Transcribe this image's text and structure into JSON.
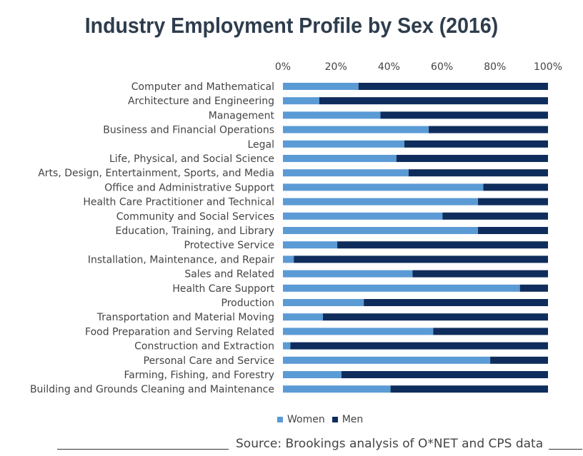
{
  "title": "Industry Employment Profile by Sex (2016)",
  "colors": {
    "women": "#5b9bd5",
    "men": "#0f2d5c"
  },
  "legend": {
    "women": "Women",
    "men": "Men"
  },
  "source": "Source: Brookings analysis of O*NET and CPS data",
  "chart_data": {
    "type": "bar",
    "orientation": "horizontal",
    "stacked": "100%",
    "title": "Industry Employment Profile by Sex (2016)",
    "xlim": [
      0,
      100
    ],
    "x_ticks": [
      "0%",
      "20%",
      "40%",
      "60%",
      "80%",
      "100%"
    ],
    "legend_position": "bottom",
    "grid": false,
    "categories": [
      "Computer and Mathematical",
      "Architecture and Engineering",
      "Management",
      "Business and Financial Operations",
      "Legal",
      "Life, Physical, and Social Science",
      "Arts, Design, Entertainment, Sports, and Media",
      "Office and Administrative Support",
      "Health Care Practitioner and Technical",
      "Community and Social Services",
      "Education, Training, and Library",
      "Protective Service",
      "Installation, Maintenance, and Repair",
      "Sales and Related",
      "Health Care Support",
      "Production",
      "Transportation and Material Moving",
      "Food Preparation and Serving Related",
      "Construction and Extraction",
      "Personal Care and Service",
      "Farming, Fishing, and Forestry",
      "Building and Grounds Cleaning and Maintenance"
    ],
    "series": [
      {
        "name": "Women",
        "values": [
          28.5,
          13.7,
          36.8,
          55.0,
          45.8,
          42.8,
          47.4,
          75.6,
          73.6,
          60.2,
          73.6,
          20.5,
          4.1,
          48.9,
          89.4,
          30.5,
          15.1,
          56.7,
          2.8,
          78.2,
          22.1,
          40.6
        ]
      },
      {
        "name": "Men",
        "values": [
          71.5,
          86.3,
          63.2,
          45.0,
          54.2,
          57.2,
          52.6,
          24.4,
          26.4,
          39.8,
          26.4,
          79.5,
          95.9,
          51.1,
          10.6,
          69.5,
          84.9,
          43.3,
          97.2,
          21.8,
          77.9,
          59.4
        ]
      }
    ]
  }
}
